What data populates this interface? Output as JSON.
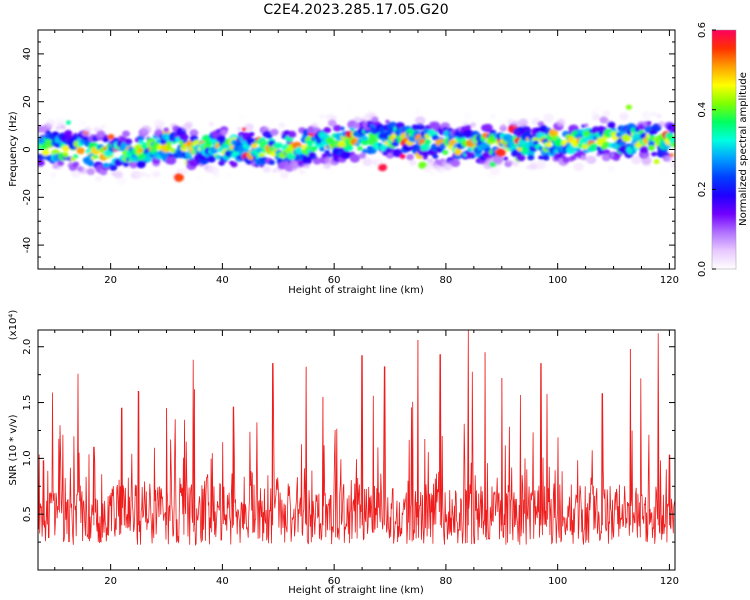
{
  "figure": {
    "title": "C2E4.2023.285.17.05.G20"
  },
  "chart_data": [
    {
      "type": "heatmap",
      "title": "C2E4.2023.285.17.05.G20",
      "xlabel": "Height of straight line (km)",
      "ylabel": "Frequency (Hz)",
      "xlim": [
        7,
        121
      ],
      "ylim": [
        -50,
        50
      ],
      "x_ticks": [
        20,
        40,
        60,
        80,
        100,
        120
      ],
      "y_ticks": [
        -40,
        -20,
        0,
        20,
        40
      ],
      "colorbar": {
        "label": "Normalized spectral amplitude",
        "range": [
          0.0,
          0.6
        ],
        "ticks": [
          "0.0",
          "0.2",
          "0.4",
          "0.6"
        ],
        "colormap": [
          "#ffffff",
          "#e8c8ff",
          "#b070ff",
          "#7000ff",
          "#2000ff",
          "#0040ff",
          "#00a0ff",
          "#00ffe0",
          "#00ff60",
          "#80ff00",
          "#ffff00",
          "#ffa000",
          "#ff3000",
          "#ff0060"
        ]
      },
      "band_center_hz": {
        "x": [
          10,
          20,
          30,
          40,
          50,
          60,
          70,
          80,
          90,
          100,
          110,
          120
        ],
        "y": [
          1,
          -2,
          1,
          1,
          0,
          3,
          5,
          2,
          2,
          3,
          4,
          4
        ]
      },
      "band_halfwidth_hz": 8
    },
    {
      "type": "line",
      "xlabel": "Height of straight line (km)",
      "ylabel": "SNR (10 * v/v)",
      "y_scale_note": "(x10⁴)",
      "xlim": [
        7,
        121
      ],
      "ylim": [
        0,
        2.15
      ],
      "x_ticks": [
        20,
        40,
        60,
        80,
        100,
        120
      ],
      "y_ticks": [
        "0.5",
        "1.0",
        "1.5",
        "2.0"
      ],
      "series_color": "#ee1c1c",
      "peaks": {
        "x": [
          8,
          17,
          22,
          25,
          30,
          35,
          42,
          49,
          55,
          58,
          65,
          69,
          75,
          79,
          84,
          87,
          90,
          97,
          108,
          113,
          118,
          120
        ],
        "y": [
          0.98,
          1.1,
          1.45,
          1.6,
          1.45,
          1.62,
          1.46,
          1.85,
          1.82,
          1.55,
          1.92,
          1.82,
          2.06,
          1.93,
          2.15,
          1.95,
          1.72,
          1.85,
          1.58,
          1.98,
          2.12,
          1.03
        ]
      },
      "baseline_mean": 0.5
    }
  ]
}
